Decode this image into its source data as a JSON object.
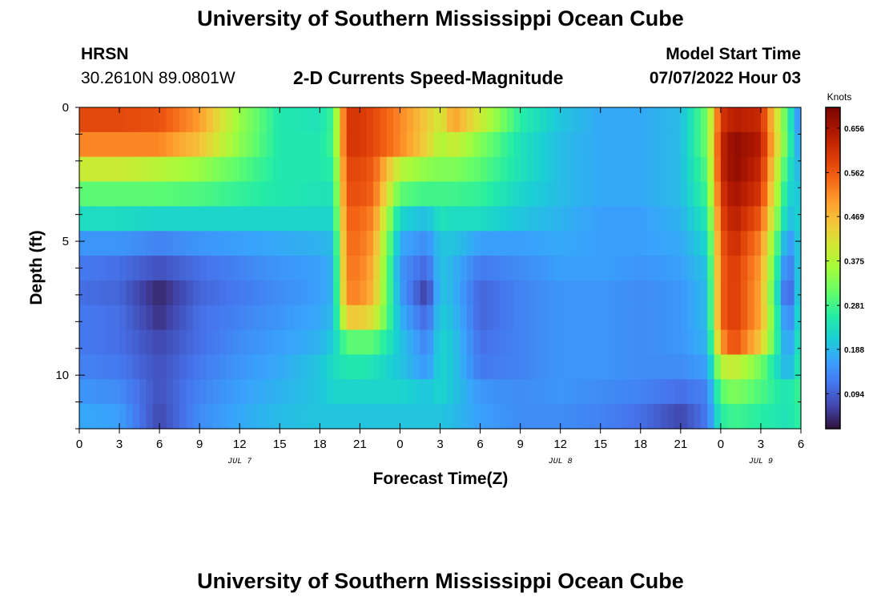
{
  "page": {
    "title_top": "University of Southern Mississippi Ocean Cube",
    "title_bottom": "University of Southern Mississippi Ocean Cube",
    "station": "HRSN",
    "coordinates": "30.2610N  89.0801W",
    "plot_title": "2-D Currents Speed-Magnitude",
    "model_label": "Model Start Time",
    "model_time": "07/07/2022 Hour 03"
  },
  "chart_data": {
    "type": "heatmap",
    "title": "2-D Currents Speed-Magnitude",
    "xlabel": "Forecast Time(Z)",
    "ylabel": "Depth (ft)",
    "xlim": [
      0,
      54
    ],
    "ylim": [
      0,
      12
    ],
    "x_ticks": [
      0,
      3,
      6,
      9,
      12,
      15,
      18,
      21,
      24,
      27,
      30,
      33,
      36,
      39,
      42,
      45,
      48,
      51,
      54
    ],
    "x_tick_labels": [
      "0",
      "3",
      "6",
      "9",
      "12",
      "15",
      "18",
      "21",
      "0",
      "3",
      "6",
      "9",
      "12",
      "15",
      "18",
      "21",
      "0",
      "3",
      "6"
    ],
    "y_ticks": [
      0,
      5,
      10
    ],
    "y_tick_labels": [
      "0",
      "5",
      "10"
    ],
    "date_labels": [
      {
        "x": 12,
        "text": "JUL 7"
      },
      {
        "x": 36,
        "text": "JUL 8"
      },
      {
        "x": 51,
        "text": "JUL 9"
      }
    ],
    "colorbar": {
      "title": "Knots",
      "min": 0.02,
      "max": 0.7,
      "ticks": [
        0.094,
        0.188,
        0.281,
        0.375,
        0.469,
        0.562,
        0.656
      ],
      "tick_labels": [
        "0.094",
        "0.188",
        "0.281",
        "0.375",
        "0.469",
        "0.562",
        "0.656"
      ]
    },
    "depth_layers": [
      0,
      1,
      2,
      3,
      4,
      5,
      6,
      7,
      8,
      9,
      10,
      11,
      12
    ],
    "key_times": [
      0,
      3,
      6,
      9,
      12,
      15,
      18,
      19,
      20,
      21,
      22,
      24,
      26,
      27,
      28,
      30,
      33,
      36,
      39,
      42,
      45,
      47,
      48,
      49,
      51,
      53,
      54
    ],
    "speed_grid": [
      [
        0.58,
        0.58,
        0.57,
        0.5,
        0.35,
        0.25,
        0.24,
        0.28,
        0.6,
        0.6,
        0.58,
        0.52,
        0.45,
        0.4,
        0.5,
        0.4,
        0.26,
        0.2,
        0.17,
        0.17,
        0.19,
        0.32,
        0.6,
        0.64,
        0.62,
        0.28,
        0.12
      ],
      [
        0.52,
        0.52,
        0.52,
        0.46,
        0.34,
        0.25,
        0.25,
        0.28,
        0.6,
        0.6,
        0.58,
        0.52,
        0.44,
        0.37,
        0.4,
        0.33,
        0.24,
        0.19,
        0.17,
        0.17,
        0.19,
        0.32,
        0.62,
        0.68,
        0.64,
        0.29,
        0.14
      ],
      [
        0.4,
        0.4,
        0.38,
        0.35,
        0.3,
        0.25,
        0.25,
        0.26,
        0.58,
        0.58,
        0.56,
        0.38,
        0.34,
        0.33,
        0.33,
        0.3,
        0.24,
        0.19,
        0.17,
        0.17,
        0.19,
        0.3,
        0.62,
        0.68,
        0.62,
        0.25,
        0.17
      ],
      [
        0.3,
        0.3,
        0.3,
        0.29,
        0.27,
        0.25,
        0.24,
        0.24,
        0.57,
        0.57,
        0.55,
        0.3,
        0.28,
        0.28,
        0.28,
        0.27,
        0.22,
        0.19,
        0.17,
        0.17,
        0.19,
        0.28,
        0.6,
        0.66,
        0.6,
        0.22,
        0.2
      ],
      [
        0.23,
        0.23,
        0.22,
        0.22,
        0.22,
        0.22,
        0.22,
        0.22,
        0.55,
        0.55,
        0.52,
        0.22,
        0.19,
        0.24,
        0.23,
        0.23,
        0.2,
        0.18,
        0.16,
        0.16,
        0.18,
        0.25,
        0.58,
        0.64,
        0.56,
        0.19,
        0.22
      ],
      [
        0.15,
        0.15,
        0.13,
        0.15,
        0.16,
        0.17,
        0.18,
        0.19,
        0.54,
        0.54,
        0.5,
        0.17,
        0.14,
        0.2,
        0.2,
        0.16,
        0.16,
        0.17,
        0.16,
        0.16,
        0.17,
        0.22,
        0.56,
        0.62,
        0.52,
        0.14,
        0.22
      ],
      [
        0.12,
        0.11,
        0.08,
        0.11,
        0.13,
        0.15,
        0.16,
        0.18,
        0.53,
        0.53,
        0.48,
        0.15,
        0.1,
        0.2,
        0.18,
        0.12,
        0.14,
        0.16,
        0.16,
        0.15,
        0.16,
        0.2,
        0.55,
        0.6,
        0.5,
        0.1,
        0.23
      ],
      [
        0.11,
        0.1,
        0.04,
        0.1,
        0.12,
        0.14,
        0.16,
        0.18,
        0.52,
        0.52,
        0.47,
        0.16,
        0.06,
        0.2,
        0.18,
        0.1,
        0.13,
        0.15,
        0.15,
        0.14,
        0.15,
        0.19,
        0.55,
        0.6,
        0.49,
        0.07,
        0.24
      ],
      [
        0.12,
        0.11,
        0.05,
        0.11,
        0.13,
        0.15,
        0.17,
        0.19,
        0.45,
        0.45,
        0.42,
        0.18,
        0.1,
        0.21,
        0.19,
        0.1,
        0.13,
        0.15,
        0.15,
        0.14,
        0.15,
        0.19,
        0.55,
        0.6,
        0.49,
        0.11,
        0.25
      ],
      [
        0.12,
        0.11,
        0.07,
        0.11,
        0.14,
        0.16,
        0.18,
        0.21,
        0.3,
        0.3,
        0.3,
        0.2,
        0.13,
        0.22,
        0.2,
        0.11,
        0.13,
        0.15,
        0.15,
        0.14,
        0.15,
        0.18,
        0.5,
        0.58,
        0.45,
        0.14,
        0.26
      ],
      [
        0.13,
        0.12,
        0.08,
        0.12,
        0.15,
        0.17,
        0.2,
        0.23,
        0.25,
        0.25,
        0.24,
        0.2,
        0.15,
        0.22,
        0.2,
        0.12,
        0.13,
        0.15,
        0.15,
        0.14,
        0.14,
        0.16,
        0.38,
        0.4,
        0.32,
        0.17,
        0.27
      ],
      [
        0.15,
        0.14,
        0.08,
        0.13,
        0.16,
        0.18,
        0.2,
        0.22,
        0.22,
        0.22,
        0.22,
        0.22,
        0.2,
        0.22,
        0.2,
        0.15,
        0.14,
        0.15,
        0.14,
        0.13,
        0.11,
        0.13,
        0.3,
        0.33,
        0.29,
        0.24,
        0.28
      ],
      [
        0.17,
        0.16,
        0.07,
        0.14,
        0.17,
        0.19,
        0.2,
        0.2,
        0.2,
        0.2,
        0.2,
        0.2,
        0.2,
        0.2,
        0.19,
        0.16,
        0.14,
        0.14,
        0.13,
        0.11,
        0.07,
        0.12,
        0.26,
        0.28,
        0.26,
        0.24,
        0.27
      ]
    ]
  }
}
